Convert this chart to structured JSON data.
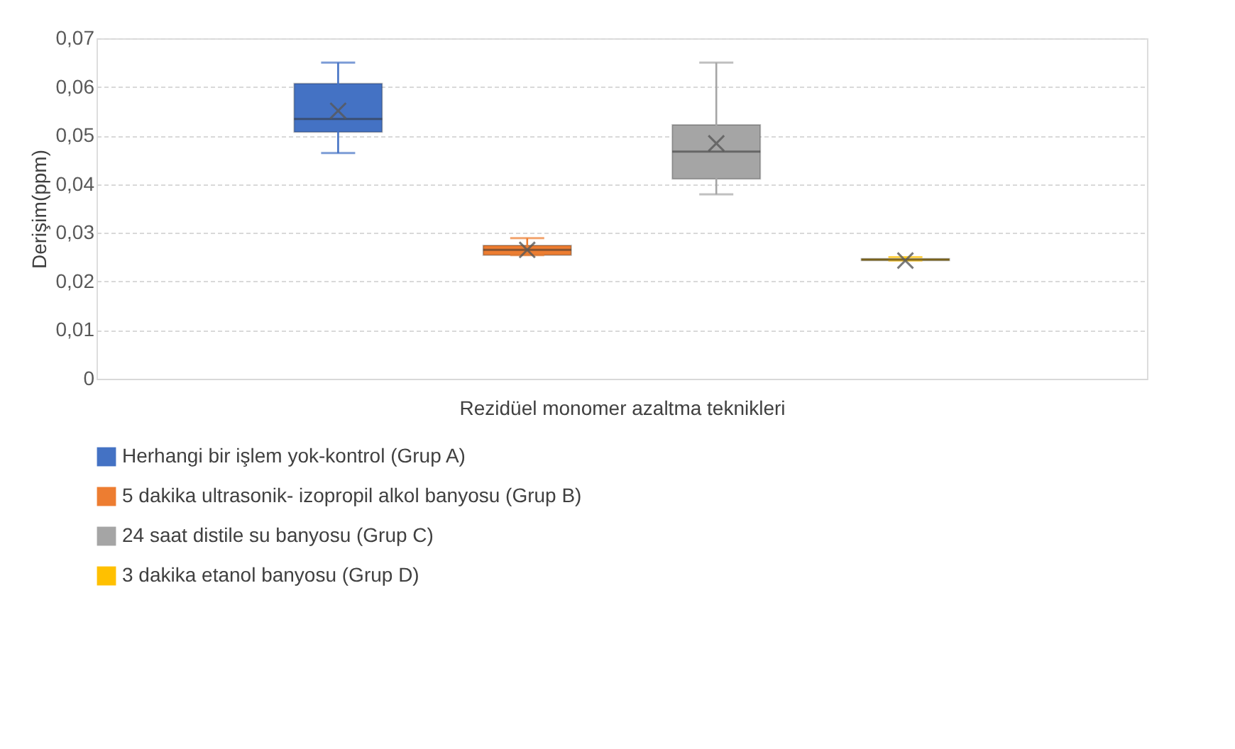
{
  "chart_data": {
    "type": "box",
    "xlabel": "Rezidüel monomer azaltma teknikleri",
    "ylabel": "Derişim(ppm)",
    "categories": [
      null
    ],
    "ylim": [
      0,
      0.07
    ],
    "yticks": [
      0,
      {
        "value": 0.01,
        "label": "0,01"
      },
      {
        "value": 0.02,
        "label": "0,02"
      },
      {
        "value": 0.03,
        "label": "0,03"
      },
      {
        "value": 0.04,
        "label": "0,04"
      },
      {
        "value": 0.05,
        "label": "0,05"
      },
      {
        "value": 0.06,
        "label": "0,06"
      },
      {
        "value": 0.07,
        "label": "0,07"
      }
    ],
    "grid": "y",
    "legend": "bottom",
    "tick_labels": "y",
    "series": [
      {
        "name": "Herhangi bir işlem yok-kontrol (Grup A)",
        "color": "#4472c4",
        "boxes": [
          {
            "low": 0.0464,
            "q1": 0.0507,
            "median": 0.0534,
            "q3": 0.0607,
            "high": 0.065,
            "mean": 0.0551
          }
        ]
      },
      {
        "name": "5 dakika ultrasonik- izopropil alkol banyosu (Grup B)",
        "color": "#ed7d31",
        "boxes": [
          {
            "low": 0.0254,
            "q1": 0.0254,
            "median": 0.0265,
            "q3": 0.0274,
            "high": 0.0289,
            "mean": 0.0265
          }
        ]
      },
      {
        "name": "24 saat distile su banyosu (Grup C)",
        "color": "#a5a5a5",
        "boxes": [
          {
            "low": 0.0379,
            "q1": 0.0411,
            "median": 0.0467,
            "q3": 0.0522,
            "high": 0.065,
            "mean": 0.0484
          }
        ]
      },
      {
        "name": "3 dakika etanol banyosu (Grup D)",
        "color": "#ffc000",
        "boxes": [
          {
            "low": 0.0243,
            "q1": 0.0243,
            "median": 0.0245,
            "q3": 0.0247,
            "high": 0.025,
            "mean": 0.0243
          }
        ]
      }
    ]
  }
}
